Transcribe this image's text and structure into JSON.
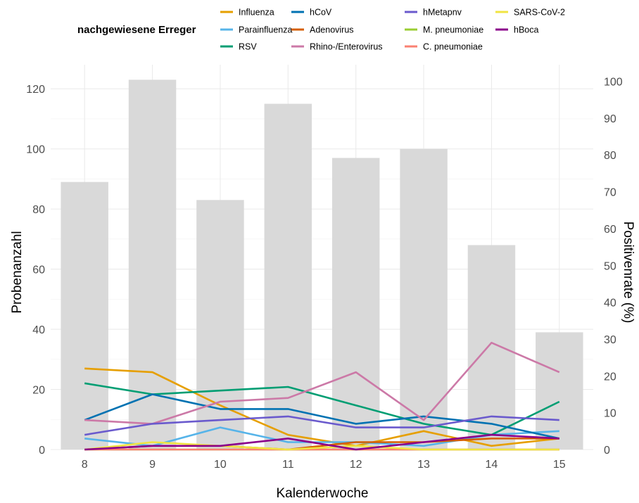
{
  "chart_data": {
    "type": "bar+line",
    "legend_title": "nachgewiesene Erreger",
    "legend_position": "top",
    "xlabel": "Kalenderwoche",
    "ylabel_left": "Probenanzahl",
    "ylabel_right": "Positivenrate (%)",
    "x": [
      8,
      9,
      10,
      11,
      12,
      13,
      14,
      15
    ],
    "x_tick_labels": [
      "8",
      "9",
      "10",
      "11",
      "12",
      "13",
      "14",
      "15"
    ],
    "ylim_left": [
      0,
      128
    ],
    "y_left_ticks": [
      "0",
      "20",
      "40",
      "60",
      "80",
      "100",
      "120"
    ],
    "ylim_right": [
      0,
      104.5
    ],
    "y_right_ticks": [
      "0",
      "10",
      "20",
      "30",
      "40",
      "50",
      "60",
      "70",
      "80",
      "90",
      "100"
    ],
    "grid": true,
    "bars": {
      "name": "Probenanzahl",
      "color": "#d9d9d9",
      "values": [
        89,
        123,
        83,
        115,
        97,
        100,
        68,
        39
      ]
    },
    "series": [
      {
        "name": "Influenza",
        "color": "#E69F00",
        "values": [
          22,
          21,
          12,
          4,
          1,
          5,
          1,
          3
        ]
      },
      {
        "name": "Parainfluenza",
        "color": "#56B4E9",
        "values": [
          3,
          1,
          6,
          2,
          2,
          1,
          4,
          5
        ]
      },
      {
        "name": "RSV",
        "color": "#009E73",
        "values": [
          18,
          15,
          16,
          17,
          12,
          7,
          4,
          13
        ]
      },
      {
        "name": "hCoV",
        "color": "#0072B2",
        "values": [
          8,
          15,
          11,
          11,
          7,
          9,
          7,
          3
        ]
      },
      {
        "name": "Adenovirus",
        "color": "#D55E00",
        "values": [
          0,
          1,
          1,
          0,
          2,
          2,
          3,
          3
        ]
      },
      {
        "name": "Rhino-/Enterovirus",
        "color": "#CC79A7",
        "values": [
          8,
          7,
          13,
          14,
          21,
          8,
          29,
          21
        ]
      },
      {
        "name": "hMetapnv",
        "color": "#6A5ACD",
        "values": [
          4,
          7,
          8,
          9,
          6,
          6,
          9,
          8
        ]
      },
      {
        "name": "M. pneumoniae",
        "color": "#9ACD32",
        "values": [
          0,
          0,
          0,
          0,
          0,
          0,
          0,
          0
        ]
      },
      {
        "name": "C. pneumoniae",
        "color": "#FA8072",
        "values": [
          0,
          0,
          0,
          0,
          0,
          0,
          0,
          0
        ]
      },
      {
        "name": "SARS-CoV-2",
        "color": "#F0E442",
        "values": [
          0,
          2,
          1,
          0,
          1,
          0,
          0,
          0
        ]
      },
      {
        "name": "hBoca",
        "color": "#8B008B",
        "values": [
          0,
          1,
          1,
          3,
          0,
          2,
          4,
          3
        ]
      }
    ]
  }
}
